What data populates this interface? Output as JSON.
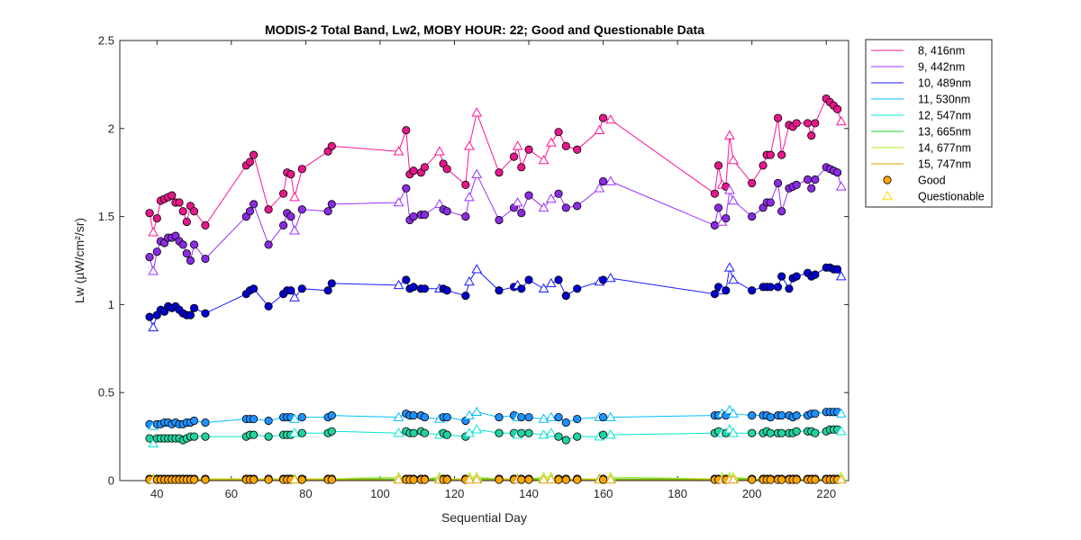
{
  "chart_data": {
    "type": "line",
    "title": "MODIS-2 Total Band,  Lw2, MOBY HOUR: 22;  Good and Questionable Data",
    "xlabel": "Sequential Day",
    "ylabel": "Lw (µW/cm²/sr)",
    "xlim": [
      30,
      226
    ],
    "ylim": [
      0,
      2.5
    ],
    "xticks": [
      40,
      60,
      80,
      100,
      120,
      140,
      160,
      180,
      200,
      220
    ],
    "yticks": [
      0,
      0.5,
      1,
      1.5,
      2,
      2.5
    ],
    "xtick_labels": [
      "40",
      "60",
      "80",
      "100",
      "120",
      "140",
      "160",
      "180",
      "200",
      "220"
    ],
    "ytick_labels": [
      "0",
      "0.5",
      "1",
      "1.5",
      "2",
      "2.5"
    ],
    "grid": false,
    "legend_position": "outside-right",
    "x": [
      38,
      39,
      40,
      41,
      42,
      43,
      44,
      45,
      46,
      47,
      48,
      49,
      50,
      53,
      64,
      65,
      66,
      70,
      74,
      75,
      76,
      77,
      79,
      86,
      87,
      105,
      107,
      108,
      109,
      111,
      112,
      116,
      117,
      118,
      123,
      124,
      126,
      132,
      136,
      137,
      138,
      140,
      144,
      146,
      148,
      150,
      153,
      159,
      160,
      162,
      190,
      191,
      192,
      193,
      194,
      195,
      200,
      203,
      204,
      205,
      207,
      208,
      210,
      211,
      212,
      215,
      216,
      217,
      220,
      221,
      222,
      223,
      224
    ],
    "quality": [
      "G",
      "Q",
      "G",
      "G",
      "G",
      "G",
      "G",
      "G",
      "G",
      "G",
      "G",
      "G",
      "G",
      "G",
      "G",
      "G",
      "G",
      "G",
      "G",
      "G",
      "G",
      "Q",
      "G",
      "G",
      "G",
      "Q",
      "G",
      "G",
      "G",
      "G",
      "G",
      "Q",
      "G",
      "G",
      "G",
      "Q",
      "Q",
      "G",
      "G",
      "Q",
      "G",
      "G",
      "Q",
      "Q",
      "G",
      "G",
      "G",
      "Q",
      "G",
      "Q",
      "G",
      "G",
      "Q",
      "G",
      "Q",
      "Q",
      "G",
      "G",
      "G",
      "G",
      "G",
      "G",
      "G",
      "G",
      "G",
      "G",
      "G",
      "G",
      "G",
      "G",
      "G",
      "G",
      "Q"
    ],
    "series": [
      {
        "name": "8, 416nm",
        "color": "#ff1493",
        "marker_color": "#e6178a",
        "values": [
          1.52,
          1.41,
          1.49,
          1.59,
          1.6,
          1.61,
          1.62,
          1.58,
          1.58,
          1.53,
          1.47,
          1.56,
          1.53,
          1.45,
          1.79,
          1.81,
          1.85,
          1.54,
          1.63,
          1.75,
          1.74,
          1.61,
          1.77,
          1.87,
          1.9,
          1.87,
          1.99,
          1.74,
          1.76,
          1.75,
          1.78,
          1.87,
          1.8,
          1.77,
          1.68,
          1.9,
          2.09,
          1.75,
          1.84,
          1.9,
          1.78,
          1.88,
          1.82,
          1.92,
          1.98,
          1.9,
          1.88,
          1.99,
          2.06,
          2.05,
          1.63,
          1.79,
          1.68,
          1.67,
          1.96,
          1.82,
          1.69,
          1.79,
          1.85,
          1.85,
          2.06,
          1.85,
          2.02,
          2.01,
          2.03,
          2.03,
          1.96,
          2.03,
          2.17,
          2.15,
          2.13,
          2.11,
          2.04
        ]
      },
      {
        "name": "9, 442nm",
        "color": "#9b30ff",
        "marker_color": "#8a2be2",
        "values": [
          1.27,
          1.19,
          1.3,
          1.36,
          1.35,
          1.38,
          1.38,
          1.39,
          1.36,
          1.34,
          1.29,
          1.25,
          1.34,
          1.26,
          1.5,
          1.53,
          1.57,
          1.34,
          1.45,
          1.52,
          1.5,
          1.42,
          1.54,
          1.53,
          1.57,
          1.58,
          1.66,
          1.48,
          1.5,
          1.51,
          1.51,
          1.57,
          1.54,
          1.53,
          1.5,
          1.61,
          1.74,
          1.48,
          1.55,
          1.58,
          1.52,
          1.62,
          1.55,
          1.6,
          1.63,
          1.55,
          1.56,
          1.66,
          1.7,
          1.7,
          1.45,
          1.55,
          1.47,
          1.49,
          1.65,
          1.59,
          1.5,
          1.55,
          1.58,
          1.58,
          1.69,
          1.53,
          1.66,
          1.67,
          1.68,
          1.71,
          1.66,
          1.71,
          1.78,
          1.77,
          1.76,
          1.75,
          1.67
        ]
      },
      {
        "name": "10, 489nm",
        "color": "#1a1aff",
        "marker_color": "#0000cd",
        "values": [
          0.93,
          0.87,
          0.94,
          0.97,
          0.96,
          0.99,
          0.98,
          0.99,
          0.97,
          0.95,
          0.94,
          0.94,
          0.98,
          0.95,
          1.06,
          1.08,
          1.09,
          0.99,
          1.06,
          1.08,
          1.08,
          1.04,
          1.09,
          1.08,
          1.12,
          1.11,
          1.14,
          1.09,
          1.1,
          1.09,
          1.09,
          1.09,
          1.09,
          1.08,
          1.05,
          1.13,
          1.2,
          1.08,
          1.1,
          1.11,
          1.09,
          1.14,
          1.09,
          1.12,
          1.14,
          1.05,
          1.09,
          1.13,
          1.14,
          1.15,
          1.06,
          1.1,
          1.08,
          1.08,
          1.21,
          1.14,
          1.08,
          1.1,
          1.1,
          1.1,
          1.1,
          1.16,
          1.09,
          1.15,
          1.16,
          1.18,
          1.16,
          1.17,
          1.21,
          1.21,
          1.2,
          1.2,
          1.16
        ]
      },
      {
        "name": "11, 530nm",
        "color": "#00bfff",
        "marker_color": "#1e90ff",
        "values": [
          0.32,
          0.31,
          0.32,
          0.32,
          0.33,
          0.33,
          0.32,
          0.33,
          0.32,
          0.32,
          0.33,
          0.33,
          0.34,
          0.33,
          0.35,
          0.35,
          0.35,
          0.34,
          0.36,
          0.36,
          0.36,
          0.35,
          0.36,
          0.36,
          0.37,
          0.36,
          0.38,
          0.37,
          0.37,
          0.37,
          0.36,
          0.35,
          0.36,
          0.36,
          0.34,
          0.37,
          0.39,
          0.36,
          0.37,
          0.36,
          0.36,
          0.36,
          0.35,
          0.36,
          0.36,
          0.33,
          0.35,
          0.36,
          0.36,
          0.36,
          0.37,
          0.37,
          0.38,
          0.37,
          0.4,
          0.38,
          0.37,
          0.37,
          0.37,
          0.36,
          0.37,
          0.37,
          0.37,
          0.36,
          0.37,
          0.37,
          0.38,
          0.38,
          0.39,
          0.39,
          0.39,
          0.39,
          0.38
        ]
      },
      {
        "name": "12, 547nm",
        "color": "#00e5d0",
        "marker_color": "#22d3a0",
        "values": [
          0.24,
          0.21,
          0.24,
          0.24,
          0.24,
          0.24,
          0.24,
          0.24,
          0.24,
          0.23,
          0.24,
          0.25,
          0.25,
          0.25,
          0.25,
          0.26,
          0.26,
          0.25,
          0.26,
          0.26,
          0.26,
          0.27,
          0.27,
          0.27,
          0.28,
          0.27,
          0.28,
          0.27,
          0.27,
          0.28,
          0.27,
          0.26,
          0.27,
          0.26,
          0.25,
          0.27,
          0.29,
          0.27,
          0.27,
          0.26,
          0.27,
          0.27,
          0.26,
          0.27,
          0.25,
          0.23,
          0.25,
          0.25,
          0.26,
          0.26,
          0.27,
          0.28,
          0.27,
          0.27,
          0.29,
          0.27,
          0.27,
          0.27,
          0.28,
          0.27,
          0.27,
          0.27,
          0.27,
          0.27,
          0.28,
          0.28,
          0.28,
          0.27,
          0.28,
          0.29,
          0.29,
          0.29,
          0.28
        ]
      },
      {
        "name": "13, 665nm",
        "color": "#22cc22",
        "marker_color": "#ffa500",
        "values": [
          0.01,
          0.01,
          0.01,
          0.01,
          0.01,
          0.01,
          0.01,
          0.01,
          0.01,
          0.01,
          0.01,
          0.01,
          0.01,
          0.01,
          0.01,
          0.01,
          0.01,
          0.01,
          0.01,
          0.01,
          0.01,
          0.01,
          0.01,
          0.01,
          0.01,
          0.01,
          0.01,
          0.01,
          0.01,
          0.01,
          0.01,
          0.01,
          0.01,
          0.01,
          0.01,
          0.01,
          0.01,
          0.01,
          0.01,
          0.01,
          0.01,
          0.01,
          0.01,
          0.01,
          0.01,
          0.01,
          0.01,
          0.01,
          0.01,
          0.01,
          0.01,
          0.01,
          0.01,
          0.01,
          0.01,
          0.01,
          0.01,
          0.01,
          0.01,
          0.01,
          0.01,
          0.01,
          0.01,
          0.01,
          0.01,
          0.01,
          0.01,
          0.01,
          0.01,
          0.01,
          0.01,
          0.01,
          0.01
        ]
      },
      {
        "name": "14, 677nm",
        "color": "#aaee22",
        "marker_color": "#ffa500",
        "values": [
          0.01,
          0.01,
          0.01,
          0.01,
          0.01,
          0.01,
          0.01,
          0.01,
          0.01,
          0.01,
          0.01,
          0.01,
          0.01,
          0.01,
          0.01,
          0.01,
          0.01,
          0.01,
          0.01,
          0.01,
          0.01,
          0.01,
          0.01,
          0.01,
          0.01,
          0.02,
          0.01,
          0.01,
          0.01,
          0.01,
          0.01,
          0.02,
          0.01,
          0.01,
          0.01,
          0.02,
          0.02,
          0.01,
          0.01,
          0.01,
          0.01,
          0.01,
          0.02,
          0.02,
          0.01,
          0.01,
          0.01,
          0.01,
          0.01,
          0.02,
          0.01,
          0.01,
          0.02,
          0.01,
          0.02,
          0.02,
          0.01,
          0.01,
          0.01,
          0.01,
          0.01,
          0.01,
          0.01,
          0.01,
          0.01,
          0.01,
          0.01,
          0.01,
          0.01,
          0.01,
          0.01,
          0.01,
          0.02
        ]
      },
      {
        "name": "15, 747nm",
        "color": "#e6a000",
        "marker_color": "#ffa500",
        "values": [
          0.005,
          0.005,
          0.005,
          0.005,
          0.005,
          0.005,
          0.005,
          0.005,
          0.005,
          0.005,
          0.005,
          0.005,
          0.005,
          0.005,
          0.005,
          0.005,
          0.005,
          0.005,
          0.005,
          0.005,
          0.005,
          0.005,
          0.005,
          0.005,
          0.005,
          0.005,
          0.005,
          0.005,
          0.005,
          0.005,
          0.005,
          0.005,
          0.005,
          0.005,
          0.005,
          0.005,
          0.005,
          0.005,
          0.005,
          0.005,
          0.005,
          0.005,
          0.005,
          0.005,
          0.005,
          0.005,
          0.005,
          0.005,
          0.005,
          0.005,
          0.005,
          0.005,
          0.005,
          0.005,
          0.005,
          0.005,
          0.005,
          0.005,
          0.005,
          0.005,
          0.005,
          0.005,
          0.005,
          0.005,
          0.005,
          0.005,
          0.005,
          0.005,
          0.005,
          0.005,
          0.005,
          0.005,
          0.005
        ]
      }
    ],
    "legend": {
      "marker_entries": [
        {
          "label": "Good",
          "marker": "circle",
          "color": "#ffa500"
        },
        {
          "label": "Questionable",
          "marker": "triangle",
          "color": "#ffd700"
        }
      ]
    }
  }
}
